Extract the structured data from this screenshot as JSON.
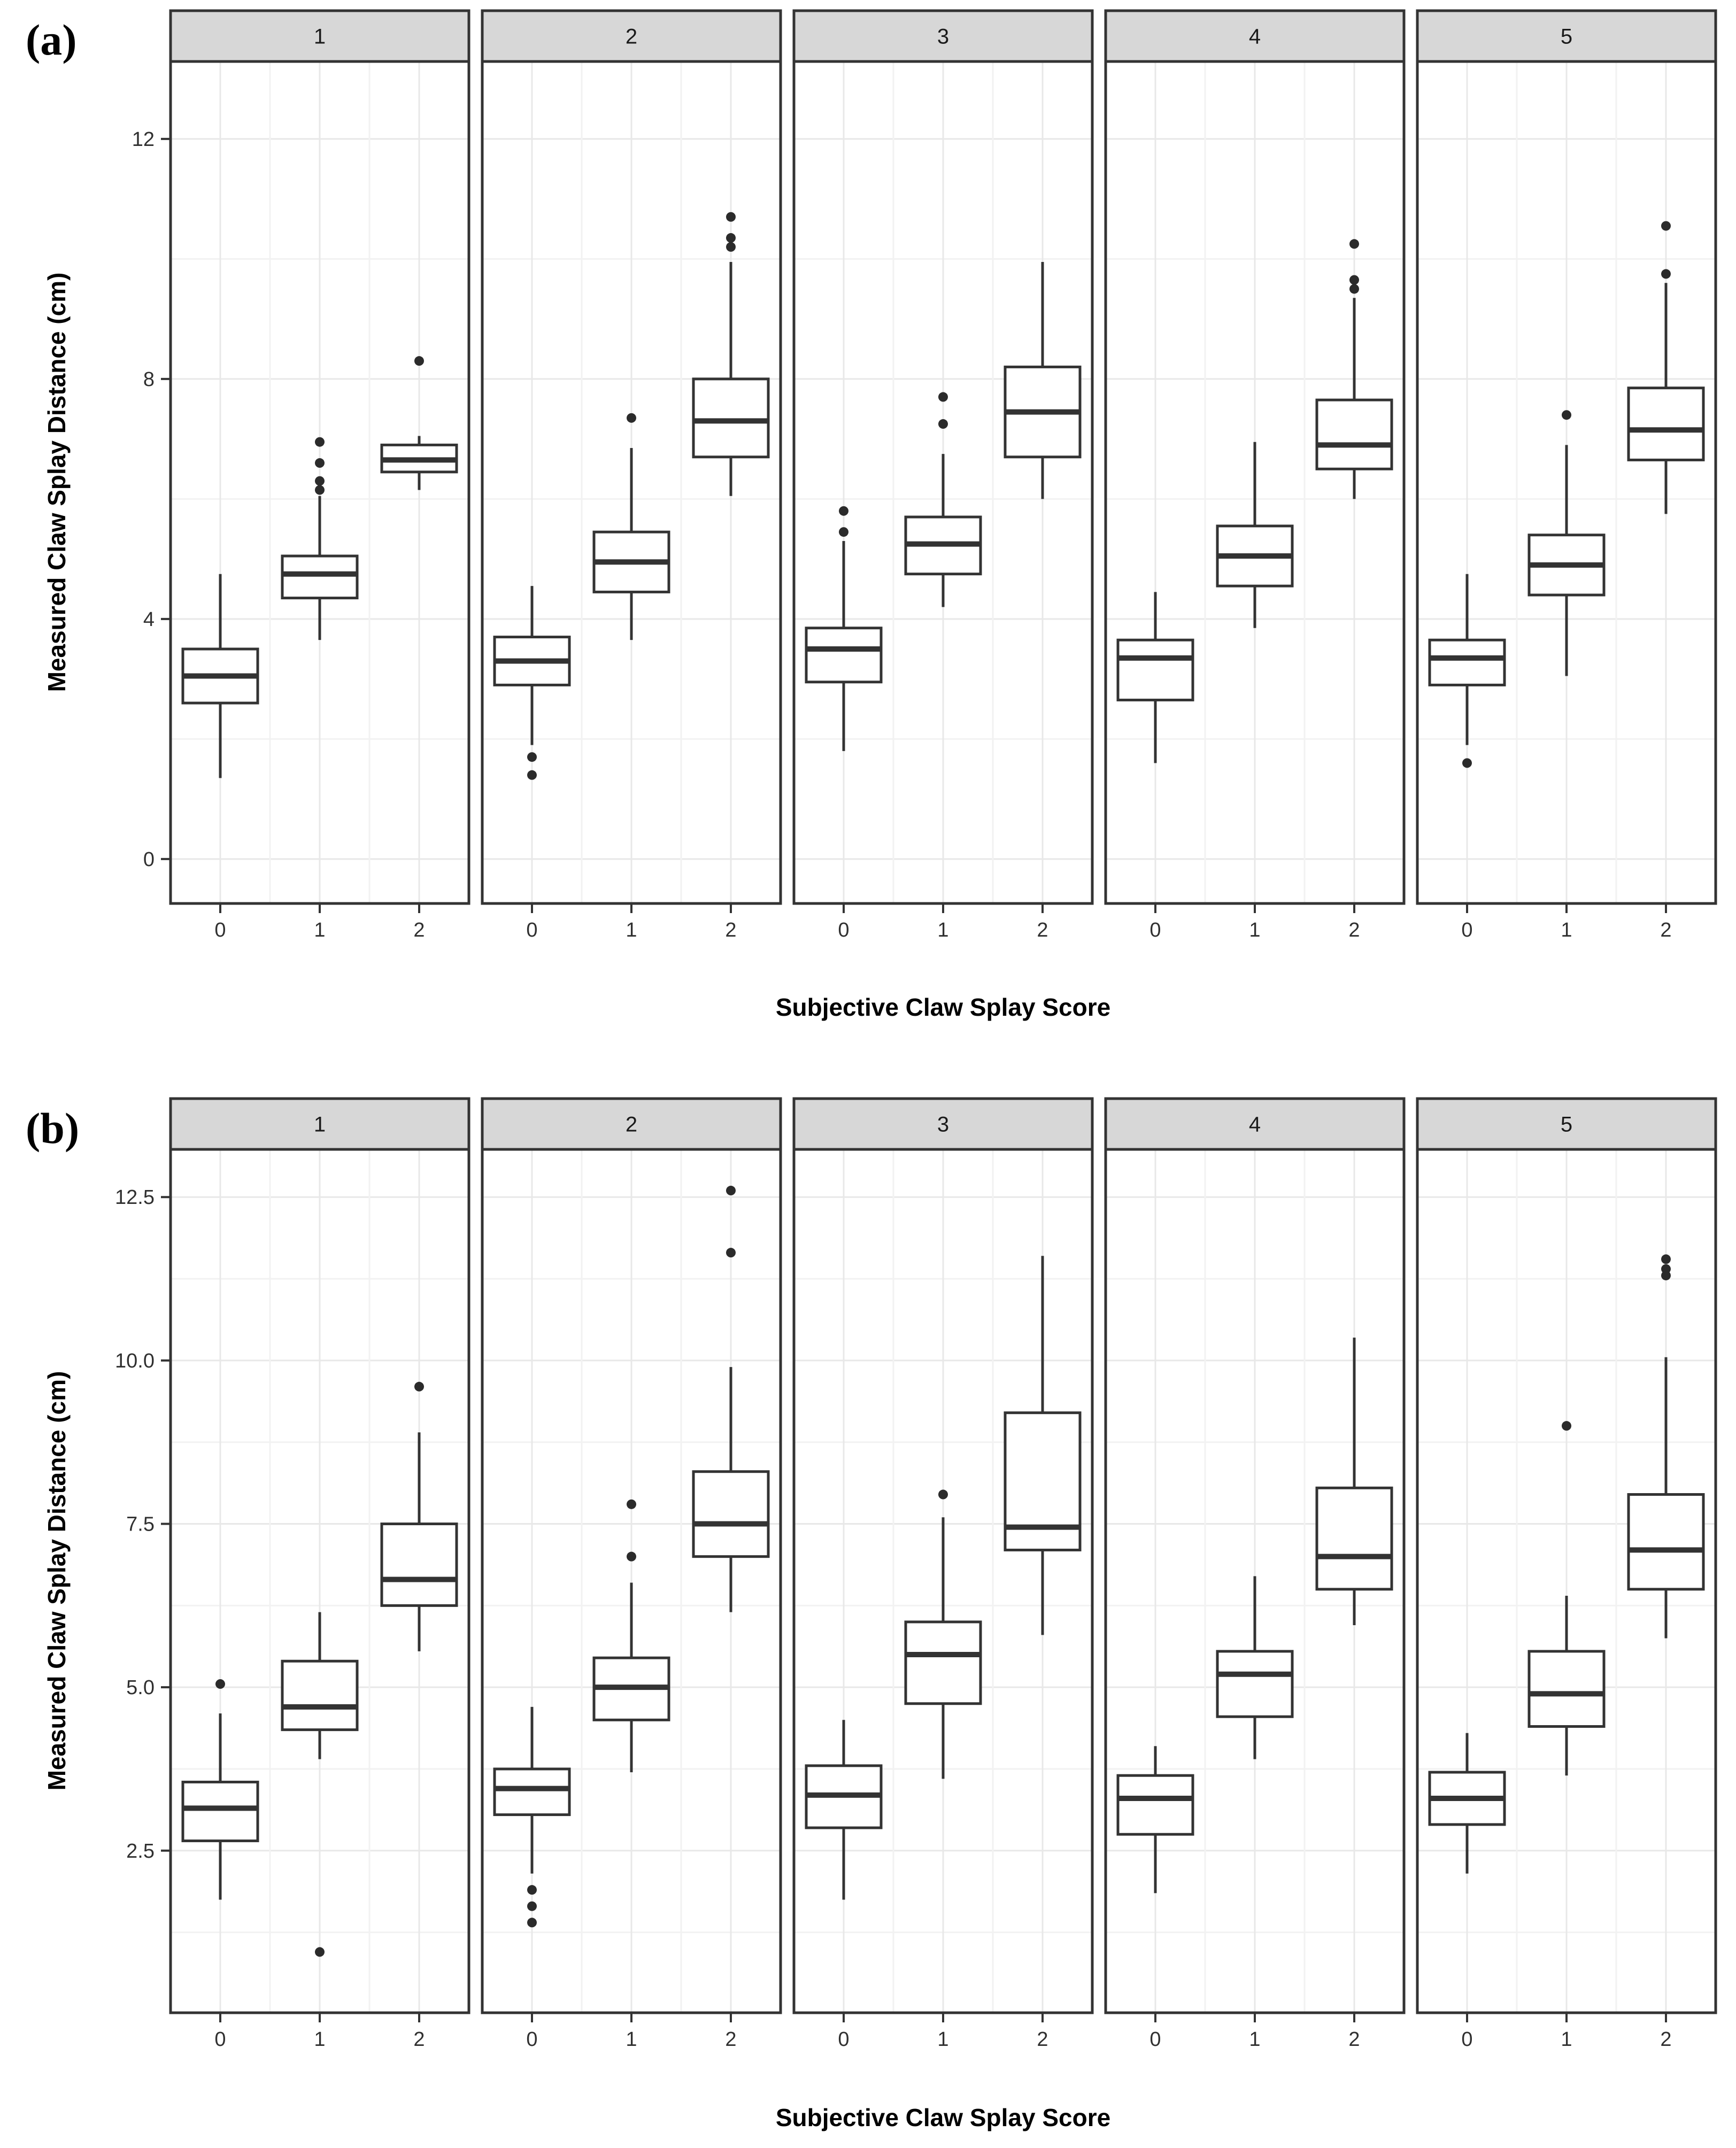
{
  "figure": {
    "panel_a_label": "(a)",
    "panel_b_label": "(b)",
    "x_axis_title": "Subjective Claw Splay Score",
    "y_axis_title": "Measured Claw Splay Distance (cm)"
  },
  "colors": {
    "background": "#ffffff",
    "panel_border": "#333333",
    "box_stroke": "#333333",
    "outlier_fill": "#2b2b2b",
    "strip_fill": "#d7d7d7",
    "grid_major": "#e8e8e8",
    "grid_minor": "#f2f2f2"
  },
  "chart_data": [
    {
      "type": "boxplot",
      "panel_label": "(a)",
      "xlabel": "Subjective Claw Splay Score",
      "ylabel": "Measured Claw Splay Distance (cm)",
      "categories": [
        "0",
        "1",
        "2"
      ],
      "ylim": [
        -0.74,
        13.29
      ],
      "yticks": [
        0,
        4,
        8,
        12
      ],
      "ytick_labels": [
        "0",
        "4",
        "8",
        "12"
      ],
      "yminor": [
        2,
        6,
        10
      ],
      "grid": true,
      "legend": "none",
      "facets": [
        {
          "label": "1",
          "boxes": [
            {
              "category": "0",
              "whisker_low": 1.35,
              "q1": 2.6,
              "median": 3.05,
              "q3": 3.5,
              "whisker_high": 4.75,
              "outliers": []
            },
            {
              "category": "1",
              "whisker_low": 3.65,
              "q1": 4.35,
              "median": 4.75,
              "q3": 5.05,
              "whisker_high": 6.05,
              "outliers": [
                6.15,
                6.3,
                6.6,
                6.95
              ]
            },
            {
              "category": "2",
              "whisker_low": 6.15,
              "q1": 6.45,
              "median": 6.65,
              "q3": 6.9,
              "whisker_high": 7.05,
              "outliers": [
                8.3
              ]
            }
          ]
        },
        {
          "label": "2",
          "boxes": [
            {
              "category": "0",
              "whisker_low": 1.9,
              "q1": 2.9,
              "median": 3.3,
              "q3": 3.7,
              "whisker_high": 4.55,
              "outliers": [
                1.4,
                1.7
              ]
            },
            {
              "category": "1",
              "whisker_low": 3.65,
              "q1": 4.45,
              "median": 4.95,
              "q3": 5.45,
              "whisker_high": 6.85,
              "outliers": [
                7.35
              ]
            },
            {
              "category": "2",
              "whisker_low": 6.05,
              "q1": 6.7,
              "median": 7.3,
              "q3": 8.0,
              "whisker_high": 9.95,
              "outliers": [
                10.2,
                10.35,
                10.7
              ]
            }
          ]
        },
        {
          "label": "3",
          "boxes": [
            {
              "category": "0",
              "whisker_low": 1.8,
              "q1": 2.95,
              "median": 3.5,
              "q3": 3.85,
              "whisker_high": 5.3,
              "outliers": [
                5.45,
                5.8
              ]
            },
            {
              "category": "1",
              "whisker_low": 4.2,
              "q1": 4.75,
              "median": 5.25,
              "q3": 5.7,
              "whisker_high": 6.75,
              "outliers": [
                7.25,
                7.7
              ]
            },
            {
              "category": "2",
              "whisker_low": 6.0,
              "q1": 6.7,
              "median": 7.45,
              "q3": 8.2,
              "whisker_high": 9.95,
              "outliers": []
            }
          ]
        },
        {
          "label": "4",
          "boxes": [
            {
              "category": "0",
              "whisker_low": 1.6,
              "q1": 2.65,
              "median": 3.35,
              "q3": 3.65,
              "whisker_high": 4.45,
              "outliers": []
            },
            {
              "category": "1",
              "whisker_low": 3.85,
              "q1": 4.55,
              "median": 5.05,
              "q3": 5.55,
              "whisker_high": 6.95,
              "outliers": []
            },
            {
              "category": "2",
              "whisker_low": 6.0,
              "q1": 6.5,
              "median": 6.9,
              "q3": 7.65,
              "whisker_high": 9.35,
              "outliers": [
                9.5,
                9.65,
                10.25
              ]
            }
          ]
        },
        {
          "label": "5",
          "boxes": [
            {
              "category": "0",
              "whisker_low": 1.9,
              "q1": 2.9,
              "median": 3.35,
              "q3": 3.65,
              "whisker_high": 4.75,
              "outliers": [
                1.6
              ]
            },
            {
              "category": "1",
              "whisker_low": 3.05,
              "q1": 4.4,
              "median": 4.9,
              "q3": 5.4,
              "whisker_high": 6.9,
              "outliers": [
                7.4
              ]
            },
            {
              "category": "2",
              "whisker_low": 5.75,
              "q1": 6.65,
              "median": 7.15,
              "q3": 7.85,
              "whisker_high": 9.6,
              "outliers": [
                9.75,
                10.55
              ]
            }
          ]
        }
      ]
    },
    {
      "type": "boxplot",
      "panel_label": "(b)",
      "xlabel": "Subjective Claw Splay Score",
      "ylabel": "Measured Claw Splay Distance (cm)",
      "categories": [
        "0",
        "1",
        "2"
      ],
      "ylim": [
        0.02,
        13.23
      ],
      "yticks": [
        2.5,
        5.0,
        7.5,
        10.0,
        12.5
      ],
      "ytick_labels": [
        "2.5",
        "5.0",
        "7.5",
        "10.0",
        "12.5"
      ],
      "yminor": [
        1.25,
        3.75,
        6.25,
        8.75,
        11.25
      ],
      "grid": true,
      "legend": "none",
      "facets": [
        {
          "label": "1",
          "boxes": [
            {
              "category": "0",
              "whisker_low": 1.75,
              "q1": 2.65,
              "median": 3.15,
              "q3": 3.55,
              "whisker_high": 4.6,
              "outliers": [
                5.05
              ]
            },
            {
              "category": "1",
              "whisker_low": 3.9,
              "q1": 4.35,
              "median": 4.7,
              "q3": 5.4,
              "whisker_high": 6.15,
              "outliers": [
                0.95
              ]
            },
            {
              "category": "2",
              "whisker_low": 5.55,
              "q1": 6.25,
              "median": 6.65,
              "q3": 7.5,
              "whisker_high": 8.9,
              "outliers": [
                9.6
              ]
            }
          ]
        },
        {
          "label": "2",
          "boxes": [
            {
              "category": "0",
              "whisker_low": 2.15,
              "q1": 3.05,
              "median": 3.45,
              "q3": 3.75,
              "whisker_high": 4.7,
              "outliers": [
                1.4,
                1.65,
                1.9
              ]
            },
            {
              "category": "1",
              "whisker_low": 3.7,
              "q1": 4.5,
              "median": 5.0,
              "q3": 5.45,
              "whisker_high": 6.6,
              "outliers": [
                7.0,
                7.8
              ]
            },
            {
              "category": "2",
              "whisker_low": 6.15,
              "q1": 7.0,
              "median": 7.5,
              "q3": 8.3,
              "whisker_high": 9.9,
              "outliers": [
                11.65,
                12.6
              ]
            }
          ]
        },
        {
          "label": "3",
          "boxes": [
            {
              "category": "0",
              "whisker_low": 1.75,
              "q1": 2.85,
              "median": 3.35,
              "q3": 3.8,
              "whisker_high": 4.5,
              "outliers": []
            },
            {
              "category": "1",
              "whisker_low": 3.6,
              "q1": 4.75,
              "median": 5.5,
              "q3": 6.0,
              "whisker_high": 7.6,
              "outliers": [
                7.95
              ]
            },
            {
              "category": "2",
              "whisker_low": 5.8,
              "q1": 7.1,
              "median": 7.45,
              "q3": 9.2,
              "whisker_high": 11.6,
              "outliers": []
            }
          ]
        },
        {
          "label": "4",
          "boxes": [
            {
              "category": "0",
              "whisker_low": 1.85,
              "q1": 2.75,
              "median": 3.3,
              "q3": 3.65,
              "whisker_high": 4.1,
              "outliers": []
            },
            {
              "category": "1",
              "whisker_low": 3.9,
              "q1": 4.55,
              "median": 5.2,
              "q3": 5.55,
              "whisker_high": 6.7,
              "outliers": []
            },
            {
              "category": "2",
              "whisker_low": 5.95,
              "q1": 6.5,
              "median": 7.0,
              "q3": 8.05,
              "whisker_high": 10.35,
              "outliers": []
            }
          ]
        },
        {
          "label": "5",
          "boxes": [
            {
              "category": "0",
              "whisker_low": 2.15,
              "q1": 2.9,
              "median": 3.3,
              "q3": 3.7,
              "whisker_high": 4.3,
              "outliers": []
            },
            {
              "category": "1",
              "whisker_low": 3.65,
              "q1": 4.4,
              "median": 4.9,
              "q3": 5.55,
              "whisker_high": 6.4,
              "outliers": [
                9.0
              ]
            },
            {
              "category": "2",
              "whisker_low": 5.75,
              "q1": 6.5,
              "median": 7.1,
              "q3": 7.95,
              "whisker_high": 10.05,
              "outliers": [
                11.3,
                11.4,
                11.55
              ]
            }
          ]
        }
      ]
    }
  ]
}
